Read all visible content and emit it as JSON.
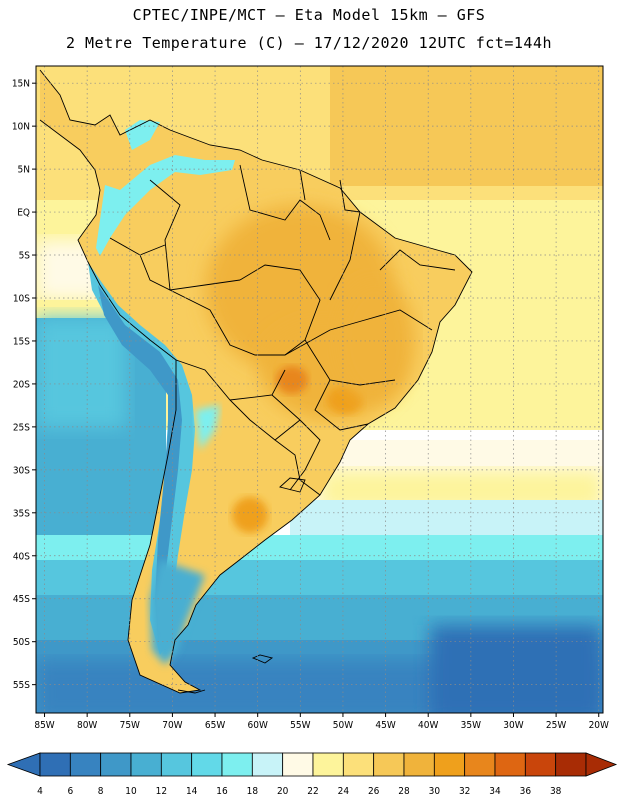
{
  "chart_data": {
    "type": "heatmap",
    "title": "CPTEC/INPE/MCT –  Eta Model 15km – GFS",
    "subtitle": "2 Metre Temperature (C) – 17/12/2020 12UTC fct=144h",
    "variable": "2 Metre Temperature",
    "units": "C",
    "model": "Eta Model 15km",
    "boundary": "GFS",
    "date": "17/12/2020 12UTC",
    "forecast": "fct=144h",
    "x_ticks": [
      "85W",
      "80W",
      "75W",
      "70W",
      "65W",
      "60W",
      "55W",
      "50W",
      "45W",
      "40W",
      "35W",
      "30W",
      "25W",
      "20W"
    ],
    "x_values": [
      -85,
      -80,
      -75,
      -70,
      -65,
      -60,
      -55,
      -50,
      -45,
      -40,
      -35,
      -30,
      -25,
      -20
    ],
    "y_ticks": [
      "15N",
      "10N",
      "5N",
      "EQ",
      "5S",
      "10S",
      "15S",
      "20S",
      "25S",
      "30S",
      "35S",
      "40S",
      "45S",
      "50S",
      "55S"
    ],
    "y_values": [
      15,
      10,
      5,
      0,
      -5,
      -10,
      -15,
      -20,
      -25,
      -30,
      -35,
      -40,
      -45,
      -50,
      -55
    ],
    "xlim": [
      -86,
      -19.5
    ],
    "ylim": [
      -58.3,
      17
    ],
    "grid": true,
    "legend": {
      "placement": "bottom",
      "labels": [
        "4",
        "6",
        "8",
        "10",
        "12",
        "14",
        "16",
        "18",
        "20",
        "22",
        "24",
        "26",
        "28",
        "30",
        "32",
        "34",
        "36",
        "38"
      ],
      "colors": [
        "#2f6fb5",
        "#3783c0",
        "#3f98c8",
        "#48afd2",
        "#56c6de",
        "#62d9e8",
        "#7defef",
        "#c8f3f8",
        "#fffae6",
        "#fdf49b",
        "#fce07a",
        "#f6c857",
        "#f0b33b",
        "#efa01c",
        "#e8861c",
        "#de6612",
        "#c9450b",
        "#a82c05"
      ]
    }
  }
}
